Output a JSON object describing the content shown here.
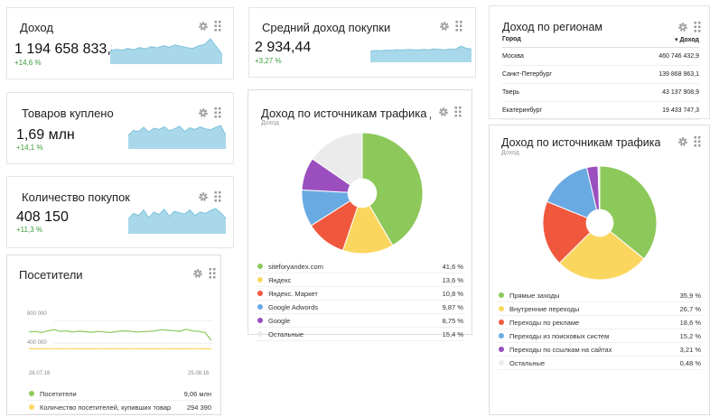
{
  "colors": {
    "spark_fill": "#a8d8ea",
    "spark_line": "#7ec3dc",
    "positive": "#3c9a3c",
    "green": "#8dc85a",
    "yellow": "#fbd65f",
    "red": "#f0583d",
    "blue": "#6aaae3",
    "purple": "#9b4fbf",
    "gray": "#ebebeb",
    "line_visitors": "#8dc85a",
    "line_buyers": "#fbd65f"
  },
  "icons": {
    "settings": "gear-icon",
    "drag": "drag-handle-icon"
  },
  "widgets": {
    "income": {
      "title": "Доход",
      "value": "1 194 658 833,8",
      "delta": "+14,6 %",
      "spark": [
        30,
        34,
        32,
        36,
        33,
        38,
        35,
        40,
        37,
        42,
        39,
        44,
        41,
        38,
        36,
        42,
        45,
        58,
        40,
        22
      ]
    },
    "goods": {
      "title": "Товаров куплено",
      "value": "1,69 млн",
      "delta": "+14,1 %",
      "spark": [
        40,
        55,
        52,
        65,
        50,
        62,
        58,
        66,
        54,
        60,
        68,
        52,
        63,
        58,
        66,
        60,
        57,
        64,
        70,
        40
      ]
    },
    "purchases": {
      "title": "Количество покупок",
      "value": "408 150",
      "delta": "+11,3 %",
      "spark": [
        42,
        58,
        52,
        68,
        46,
        62,
        55,
        70,
        50,
        64,
        60,
        56,
        68,
        52,
        62,
        58,
        66,
        72,
        60,
        44
      ]
    },
    "avg": {
      "title": "Средний доход покупки",
      "value": "2 934,44",
      "delta": "+3,27 %",
      "spark": [
        30,
        32,
        31,
        33,
        32,
        34,
        33,
        35,
        34,
        33,
        35,
        34,
        36,
        35,
        34,
        36,
        35,
        44,
        38,
        36
      ]
    },
    "visitors": {
      "title": "Посетители",
      "y_ticks": [
        "800 000",
        "400 000"
      ],
      "x_ticks": [
        "26.07.16",
        "25.08.16"
      ],
      "series": [
        {
          "name": "Посетители",
          "value": "9,06 млн",
          "values": [
            600,
            610,
            590,
            620,
            640,
            610,
            620,
            600,
            615,
            605,
            595,
            610,
            600,
            590,
            610,
            620,
            615,
            600,
            605,
            610,
            620,
            640,
            630,
            625,
            610,
            650,
            620,
            610,
            590,
            450
          ]
        },
        {
          "name": "Количество посетителей, купивших товар",
          "value": "294 390",
          "values": [
            300,
            301,
            300,
            302,
            301,
            300,
            301,
            302,
            300,
            301,
            300,
            302,
            301,
            300,
            301,
            300,
            301,
            302,
            300,
            301,
            300,
            301,
            302,
            300,
            301,
            300,
            302,
            301,
            300,
            298
          ]
        }
      ]
    },
    "traffic_dev": {
      "title": "Доход по источникам трафика де...",
      "subtitle": "Доход",
      "legend": [
        {
          "label": "siteforyandex.com",
          "value": "41,6 %",
          "pct": 41.6,
          "color": "#8dc85a"
        },
        {
          "label": "Яндекс",
          "value": "13,6 %",
          "pct": 13.6,
          "color": "#fbd65f"
        },
        {
          "label": "Яндекс. Маркет",
          "value": "10,8 %",
          "pct": 10.8,
          "color": "#f0583d"
        },
        {
          "label": "Google Adwords",
          "value": "9,87 %",
          "pct": 9.87,
          "color": "#6aaae3"
        },
        {
          "label": "Google",
          "value": "8,75 %",
          "pct": 8.75,
          "color": "#9b4fbf"
        },
        {
          "label": "Остальные",
          "value": "15,4 %",
          "pct": 15.4,
          "color": "#ebebeb"
        }
      ]
    },
    "regions": {
      "title": "Доход по регионам",
      "col_city": "Город",
      "col_income": "▾ Доход",
      "rows": [
        {
          "city": "Москва",
          "income": "460 746 432,9"
        },
        {
          "city": "Санкт-Петербург",
          "income": "139 868 963,1"
        },
        {
          "city": "Тверь",
          "income": "43 137 908,9"
        },
        {
          "city": "Екатеринбург",
          "income": "19 433 747,3"
        }
      ]
    },
    "traffic": {
      "title": "Доход по источникам трафика",
      "subtitle": "Доход",
      "legend": [
        {
          "label": "Прямые заходы",
          "value": "35,9 %",
          "pct": 35.9,
          "color": "#8dc85a"
        },
        {
          "label": "Внутренние переходы",
          "value": "26,7 %",
          "pct": 26.7,
          "color": "#fbd65f"
        },
        {
          "label": "Переходы по рекламе",
          "value": "18,6 %",
          "pct": 18.6,
          "color": "#f0583d"
        },
        {
          "label": "Переходы из поисковых систем",
          "value": "15,2 %",
          "pct": 15.2,
          "color": "#6aaae3"
        },
        {
          "label": "Переходы по ссылкам на сайтах",
          "value": "3,21 %",
          "pct": 3.21,
          "color": "#9b4fbf"
        },
        {
          "label": "Остальные",
          "value": "0,48 %",
          "pct": 0.48,
          "color": "#ebebeb"
        }
      ]
    }
  }
}
